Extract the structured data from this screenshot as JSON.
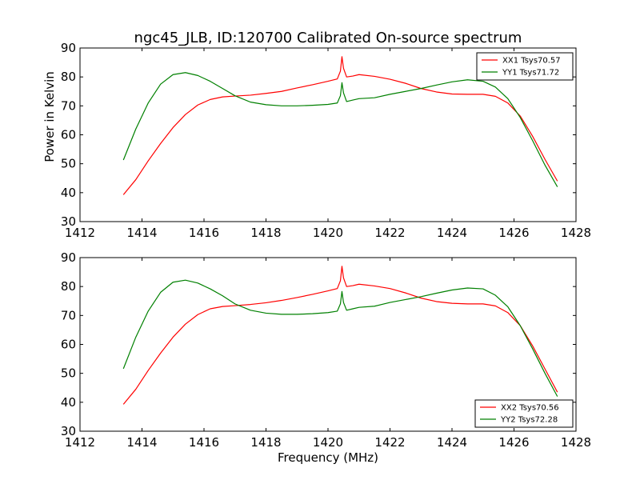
{
  "title": "ngc45_JLB, ID:120700 Calibrated On-source spectrum",
  "xlabel": "Frequency (MHz)",
  "ylabel": "Power in Kelvin",
  "chart_data": [
    {
      "type": "line",
      "title": "ngc45_JLB, ID:120700 Calibrated On-source spectrum",
      "xlabel": "",
      "ylabel": "Power in Kelvin",
      "xlim": [
        1412,
        1428
      ],
      "ylim": [
        30,
        90
      ],
      "xticks": [
        1412,
        1414,
        1416,
        1418,
        1420,
        1422,
        1424,
        1426,
        1428
      ],
      "yticks": [
        30,
        40,
        50,
        60,
        70,
        80,
        90
      ],
      "grid": false,
      "legend_position": "top-right",
      "series": [
        {
          "name": "XX1 Tsys70.57",
          "color": "#ff0000",
          "x": [
            1413.4,
            1413.8,
            1414.2,
            1414.6,
            1415.0,
            1415.4,
            1415.8,
            1416.2,
            1416.6,
            1417.0,
            1417.5,
            1418.0,
            1418.5,
            1419.0,
            1419.5,
            1420.0,
            1420.3,
            1420.4,
            1420.45,
            1420.5,
            1420.6,
            1420.8,
            1421.0,
            1421.5,
            1422.0,
            1422.5,
            1423.0,
            1423.5,
            1424.0,
            1424.5,
            1425.0,
            1425.4,
            1425.8,
            1426.2,
            1426.6,
            1427.0,
            1427.4
          ],
          "y": [
            39.3,
            44.5,
            51.0,
            57.0,
            62.5,
            67.0,
            70.3,
            72.2,
            73.1,
            73.4,
            73.7,
            74.3,
            75.0,
            76.2,
            77.3,
            78.5,
            79.3,
            82.0,
            87.0,
            83.0,
            80.0,
            80.3,
            80.8,
            80.2,
            79.2,
            77.8,
            76.0,
            74.8,
            74.1,
            74.0,
            74.0,
            73.3,
            71.0,
            66.5,
            59.5,
            51.5,
            44.0
          ]
        },
        {
          "name": "YY1 Tsys71.72",
          "color": "#008000",
          "x": [
            1413.4,
            1413.8,
            1414.2,
            1414.6,
            1415.0,
            1415.4,
            1415.8,
            1416.2,
            1416.6,
            1417.0,
            1417.5,
            1418.0,
            1418.5,
            1419.0,
            1419.5,
            1420.0,
            1420.3,
            1420.4,
            1420.45,
            1420.5,
            1420.6,
            1420.8,
            1421.0,
            1421.5,
            1422.0,
            1422.5,
            1423.0,
            1423.5,
            1424.0,
            1424.5,
            1425.0,
            1425.4,
            1425.8,
            1426.2,
            1426.6,
            1427.0,
            1427.4
          ],
          "y": [
            51.3,
            62.0,
            71.0,
            77.5,
            80.8,
            81.5,
            80.5,
            78.5,
            76.0,
            73.5,
            71.3,
            70.4,
            70.0,
            70.0,
            70.2,
            70.5,
            71.0,
            73.5,
            78.0,
            74.5,
            71.5,
            72.0,
            72.5,
            72.8,
            74.0,
            75.0,
            76.0,
            77.2,
            78.3,
            79.0,
            78.5,
            76.5,
            72.5,
            66.0,
            58.0,
            49.5,
            42.0
          ]
        }
      ]
    },
    {
      "type": "line",
      "title": "",
      "xlabel": "Frequency (MHz)",
      "ylabel": "",
      "xlim": [
        1412,
        1428
      ],
      "ylim": [
        30,
        90
      ],
      "xticks": [
        1412,
        1414,
        1416,
        1418,
        1420,
        1422,
        1424,
        1426,
        1428
      ],
      "yticks": [
        30,
        40,
        50,
        60,
        70,
        80,
        90
      ],
      "grid": false,
      "legend_position": "bottom-right",
      "series": [
        {
          "name": "XX2 Tsys70.56",
          "color": "#ff0000",
          "x": [
            1413.4,
            1413.8,
            1414.2,
            1414.6,
            1415.0,
            1415.4,
            1415.8,
            1416.2,
            1416.6,
            1417.0,
            1417.5,
            1418.0,
            1418.5,
            1419.0,
            1419.5,
            1420.0,
            1420.3,
            1420.4,
            1420.45,
            1420.5,
            1420.6,
            1420.8,
            1421.0,
            1421.5,
            1422.0,
            1422.5,
            1423.0,
            1423.5,
            1424.0,
            1424.5,
            1425.0,
            1425.4,
            1425.8,
            1426.2,
            1426.6,
            1427.0,
            1427.4
          ],
          "y": [
            39.3,
            44.5,
            51.0,
            57.0,
            62.5,
            67.0,
            70.3,
            72.3,
            73.1,
            73.4,
            73.8,
            74.4,
            75.2,
            76.2,
            77.3,
            78.5,
            79.3,
            82.0,
            87.0,
            83.0,
            80.0,
            80.3,
            80.8,
            80.2,
            79.3,
            77.8,
            76.0,
            74.8,
            74.2,
            74.0,
            74.0,
            73.3,
            71.0,
            66.5,
            59.5,
            51.5,
            43.5
          ]
        },
        {
          "name": "YY2 Tsys72.28",
          "color": "#008000",
          "x": [
            1413.4,
            1413.8,
            1414.2,
            1414.6,
            1415.0,
            1415.4,
            1415.8,
            1416.2,
            1416.6,
            1417.0,
            1417.5,
            1418.0,
            1418.5,
            1419.0,
            1419.5,
            1420.0,
            1420.3,
            1420.4,
            1420.45,
            1420.5,
            1420.6,
            1420.8,
            1421.0,
            1421.5,
            1422.0,
            1422.5,
            1423.0,
            1423.5,
            1424.0,
            1424.5,
            1425.0,
            1425.4,
            1425.8,
            1426.2,
            1426.6,
            1427.0,
            1427.4
          ],
          "y": [
            51.6,
            62.5,
            71.5,
            78.0,
            81.5,
            82.2,
            81.2,
            79.2,
            76.8,
            74.0,
            71.8,
            70.8,
            70.4,
            70.4,
            70.6,
            71.0,
            71.5,
            74.0,
            78.3,
            74.5,
            71.8,
            72.3,
            72.8,
            73.2,
            74.5,
            75.5,
            76.5,
            77.7,
            78.8,
            79.5,
            79.2,
            77.0,
            73.0,
            66.5,
            58.5,
            50.0,
            42.0
          ]
        }
      ]
    }
  ]
}
